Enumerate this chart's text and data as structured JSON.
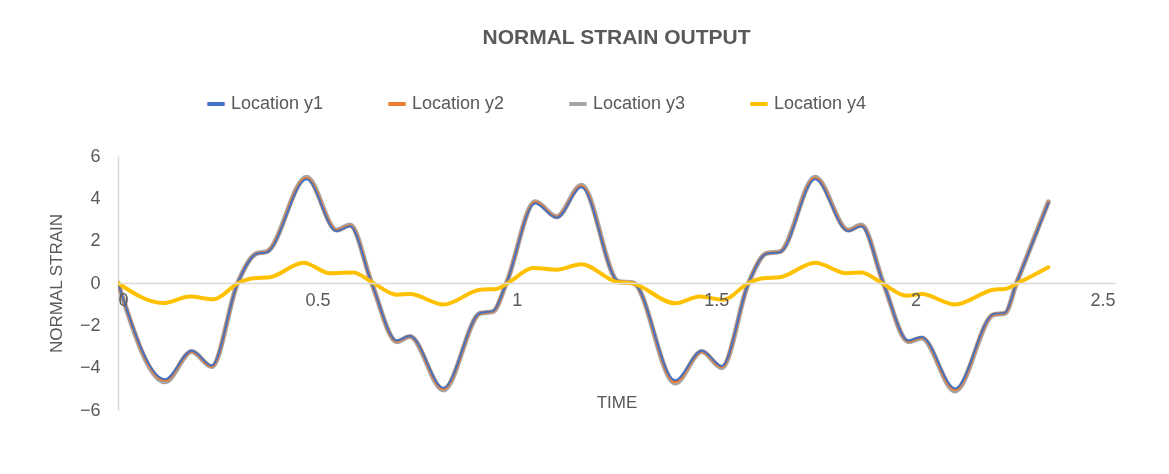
{
  "chart_data": {
    "type": "line",
    "title": "NORMAL STRAIN OUTPUT",
    "xlabel": "TIME",
    "ylabel": "NORMAL STRAIN",
    "xlim": [
      0,
      2.5
    ],
    "xticks": [
      0,
      0.5,
      1,
      1.5,
      2,
      2.5
    ],
    "ylim": [
      -6,
      6
    ],
    "yticks": [
      -6,
      -4,
      -2,
      0,
      2,
      4,
      6
    ],
    "grid": false,
    "legend": "top",
    "line_style": "solid",
    "marker": "none",
    "series": [
      {
        "name": "Location y1",
        "color": "#4472c4",
        "x": [
          0,
          0.118,
          0.185,
          0.235,
          0.3,
          0.348,
          0.373,
          0.473,
          0.548,
          0.582,
          0.636,
          0.699,
          0.732,
          0.816,
          0.908,
          0.94,
          0.974,
          1.046,
          1.1,
          1.162,
          1.255,
          1.292,
          1.397,
          1.464,
          1.514,
          1.581,
          1.626,
          1.66,
          1.748,
          1.831,
          1.864,
          1.919,
          1.982,
          2.015,
          2.099,
          2.195,
          2.224,
          2.253,
          2.333
        ],
        "values": [
          0,
          -4.55,
          -3.2,
          -3.9,
          0,
          1.38,
          1.45,
          4.9,
          2.45,
          2.68,
          0,
          -2.72,
          -2.5,
          -4.95,
          -1.42,
          -1.33,
          0,
          3.77,
          3.08,
          4.52,
          0.07,
          0,
          -4.6,
          -3.2,
          -3.92,
          0,
          1.38,
          1.45,
          4.9,
          2.45,
          2.68,
          0,
          -2.72,
          -2.55,
          -4.98,
          -1.47,
          -1.4,
          0,
          3.77
        ]
      },
      {
        "name": "Location y2",
        "color": "#ed7d31",
        "x": [
          0,
          0.118,
          0.185,
          0.235,
          0.3,
          0.348,
          0.373,
          0.473,
          0.548,
          0.582,
          0.636,
          0.699,
          0.732,
          0.816,
          0.908,
          0.94,
          0.974,
          1.046,
          1.1,
          1.162,
          1.255,
          1.292,
          1.397,
          1.464,
          1.514,
          1.581,
          1.626,
          1.66,
          1.748,
          1.831,
          1.864,
          1.919,
          1.982,
          2.015,
          2.099,
          2.195,
          2.224,
          2.253,
          2.333
        ],
        "values": [
          0,
          -4.6,
          -3.22,
          -3.93,
          0,
          1.39,
          1.47,
          4.95,
          2.48,
          2.71,
          0,
          -2.75,
          -2.52,
          -5,
          -1.43,
          -1.34,
          0,
          3.81,
          3.11,
          4.57,
          0.07,
          0,
          -4.67,
          -3.22,
          -3.96,
          0,
          1.39,
          1.47,
          4.95,
          2.48,
          2.71,
          0,
          -2.75,
          -2.58,
          -5.04,
          -1.49,
          -1.42,
          0,
          3.81
        ]
      },
      {
        "name": "Location y3",
        "color": "#a5a5a5",
        "x": [
          0,
          0.118,
          0.185,
          0.235,
          0.3,
          0.348,
          0.373,
          0.473,
          0.548,
          0.582,
          0.636,
          0.699,
          0.732,
          0.816,
          0.908,
          0.94,
          0.974,
          1.046,
          1.1,
          1.162,
          1.255,
          1.292,
          1.397,
          1.464,
          1.514,
          1.581,
          1.626,
          1.66,
          1.748,
          1.831,
          1.864,
          1.919,
          1.982,
          2.015,
          2.099,
          2.195,
          2.224,
          2.253,
          2.333
        ],
        "values": [
          0,
          -4.67,
          -3.24,
          -3.95,
          0,
          1.4,
          1.48,
          5,
          2.5,
          2.74,
          0,
          -2.77,
          -2.53,
          -5.05,
          -1.43,
          -1.35,
          0,
          3.84,
          3.13,
          4.62,
          0.07,
          0,
          -4.73,
          -3.24,
          -4,
          0,
          1.4,
          1.48,
          5,
          2.5,
          2.74,
          0,
          -2.77,
          -2.6,
          -5.1,
          -1.5,
          -1.43,
          0,
          3.84
        ]
      },
      {
        "name": "Location y4",
        "color": "#ffc000",
        "x": [
          0,
          0.113,
          0.181,
          0.239,
          0.302,
          0.339,
          0.381,
          0.465,
          0.532,
          0.59,
          0.64,
          0.699,
          0.732,
          0.816,
          0.908,
          0.949,
          0.978,
          1.041,
          1.1,
          1.162,
          1.25,
          1.292,
          1.397,
          1.459,
          1.518,
          1.581,
          1.618,
          1.66,
          1.748,
          1.827,
          1.864,
          1.915,
          1.977,
          2.015,
          2.099,
          2.195,
          2.224,
          2.257,
          2.333
        ],
        "values": [
          0,
          -0.95,
          -0.64,
          -0.77,
          0,
          0.22,
          0.27,
          0.96,
          0.46,
          0.5,
          0,
          -0.55,
          -0.52,
          -1.02,
          -0.32,
          -0.28,
          0,
          0.71,
          0.63,
          0.89,
          0.05,
          -0.03,
          -0.96,
          -0.64,
          -0.79,
          0,
          0.22,
          0.27,
          0.96,
          0.46,
          0.5,
          0,
          -0.6,
          -0.52,
          -1.02,
          -0.32,
          -0.28,
          0,
          0.74
        ]
      }
    ]
  }
}
